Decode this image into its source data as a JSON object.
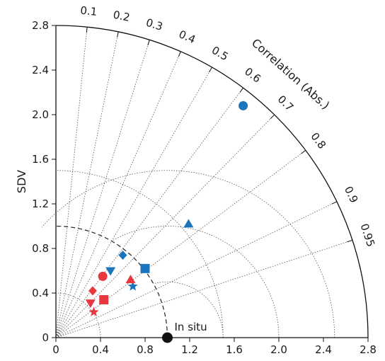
{
  "chart_data": {
    "type": "scatter",
    "subtype": "taylor-diagram",
    "xlabel": "",
    "ylabel": "SDV",
    "arc_label": "Correlation (Abs.)",
    "sd_range": [
      0,
      2.8
    ],
    "sd_ticks": [
      "0",
      "0.4",
      "0.8",
      "1.2",
      "1.6",
      "2.0",
      "2.4",
      "2.8"
    ],
    "correlation_ticks": [
      "0.1",
      "0.2",
      "0.3",
      "0.4",
      "0.5",
      "0.6",
      "0.7",
      "0.8",
      "0.9",
      "0.95"
    ],
    "correlation_values": [
      0.1,
      0.2,
      0.3,
      0.4,
      0.5,
      0.6,
      0.7,
      0.8,
      0.9,
      0.95
    ],
    "rms_circles": [
      0.5,
      1.0,
      1.5
    ],
    "reference": {
      "label": "In situ",
      "sdv": 1.0,
      "correlation": 1.0,
      "x": 1.0,
      "y": 0.0,
      "color": "#111111"
    },
    "colors": {
      "blue": "#1b75bc",
      "red": "#e8373e",
      "grid": "#555555"
    },
    "points": [
      {
        "marker": "circle",
        "color": "blue",
        "x": 1.68,
        "y": 2.08
      },
      {
        "marker": "triangle-up",
        "color": "blue",
        "x": 1.19,
        "y": 1.02
      },
      {
        "marker": "square",
        "color": "blue",
        "x": 0.8,
        "y": 0.62
      },
      {
        "marker": "diamond",
        "color": "blue",
        "x": 0.6,
        "y": 0.74
      },
      {
        "marker": "triangle-down",
        "color": "blue",
        "x": 0.49,
        "y": 0.6
      },
      {
        "marker": "star",
        "color": "blue",
        "x": 0.69,
        "y": 0.46
      },
      {
        "marker": "circle",
        "color": "red",
        "x": 0.42,
        "y": 0.55
      },
      {
        "marker": "triangle-up",
        "color": "red",
        "x": 0.67,
        "y": 0.52
      },
      {
        "marker": "diamond",
        "color": "red",
        "x": 0.33,
        "y": 0.42
      },
      {
        "marker": "square",
        "color": "red",
        "x": 0.43,
        "y": 0.34
      },
      {
        "marker": "triangle-down",
        "color": "red",
        "x": 0.31,
        "y": 0.31
      },
      {
        "marker": "star",
        "color": "red",
        "x": 0.34,
        "y": 0.23
      }
    ]
  }
}
